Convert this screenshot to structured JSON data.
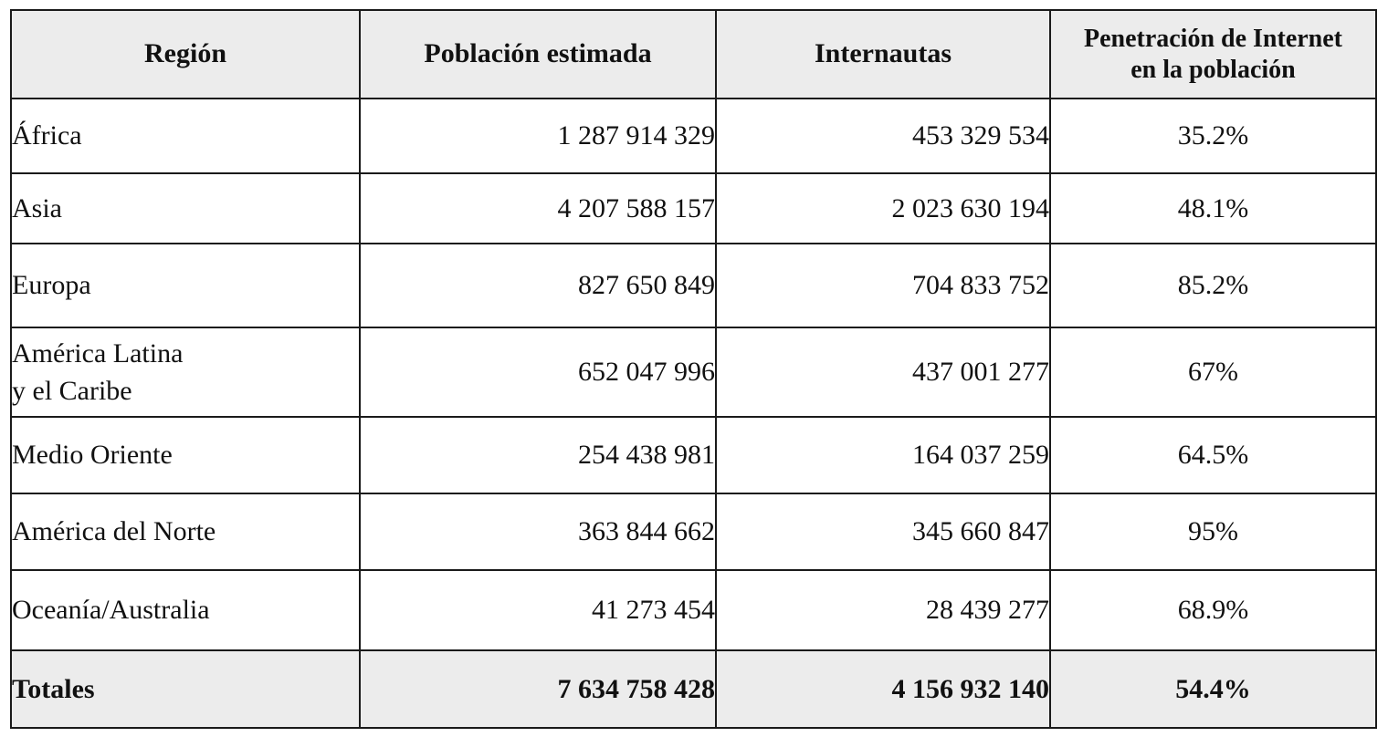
{
  "table": {
    "headers": {
      "region": "Región",
      "population": "Población estimada",
      "internet_users": "Internautas",
      "penetration": "Penetración de Internet\nen la población"
    },
    "rows": [
      {
        "region": "África",
        "population": "1 287 914 329",
        "internet_users": "453 329 534",
        "penetration": "35.2%"
      },
      {
        "region": "Asia",
        "population": "4 207 588 157",
        "internet_users": "2 023 630 194",
        "penetration": "48.1%"
      },
      {
        "region": "Europa",
        "population": "827 650 849",
        "internet_users": "704 833 752",
        "penetration": "85.2%"
      },
      {
        "region": "América Latina\ny el Caribe",
        "population": "652 047 996",
        "internet_users": "437 001 277",
        "penetration": "67%"
      },
      {
        "region": "Medio Oriente",
        "population": "254 438 981",
        "internet_users": "164 037 259",
        "penetration": "64.5%"
      },
      {
        "region": "América del Norte",
        "population": "363 844 662",
        "internet_users": "345 660 847",
        "penetration": "95%"
      },
      {
        "region": "Oceanía/Australia",
        "population": "41 273 454",
        "internet_users": "28 439 277",
        "penetration": "68.9%"
      }
    ],
    "totals": {
      "region": "Totales",
      "population": "7 634 758 428",
      "internet_users": "4 156 932 140",
      "penetration": "54.4%"
    }
  },
  "colors": {
    "header_background": "#ececec",
    "border": "#1a1a1a",
    "text": "#111111"
  }
}
